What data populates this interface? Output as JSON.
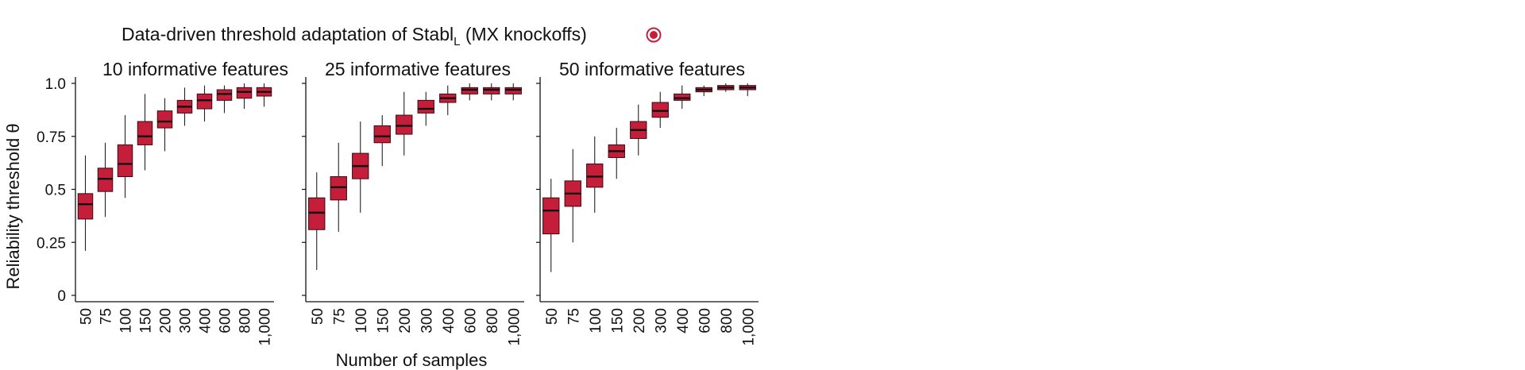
{
  "figure": {
    "title_main": "Data-driven threshold adaptation of Stabl",
    "title_sub": "L",
    "title_suffix": " (MX knockoffs)",
    "marker_icon": "target-circle-icon",
    "marker_color": "#c41e3a"
  },
  "chart_data": [
    {
      "type": "box",
      "title": "10 informative features",
      "xlabel": "",
      "ylabel": "Reliability threshold θ",
      "ylim": [
        0,
        1
      ],
      "yticks": [
        0,
        0.25,
        0.5,
        0.75,
        1.0
      ],
      "ytick_labels": [
        "0",
        "0.25",
        "0.5",
        "0.75",
        "1.0"
      ],
      "categories": [
        "50",
        "75",
        "100",
        "150",
        "200",
        "300",
        "400",
        "600",
        "800",
        "1,000"
      ],
      "box_color": "#c41e3a",
      "boxes": [
        {
          "whislo": 0.21,
          "q1": 0.36,
          "med": 0.43,
          "q3": 0.48,
          "whishi": 0.66
        },
        {
          "whislo": 0.37,
          "q1": 0.49,
          "med": 0.55,
          "q3": 0.6,
          "whishi": 0.72
        },
        {
          "whislo": 0.46,
          "q1": 0.56,
          "med": 0.62,
          "q3": 0.71,
          "whishi": 0.85
        },
        {
          "whislo": 0.59,
          "q1": 0.71,
          "med": 0.75,
          "q3": 0.82,
          "whishi": 0.95
        },
        {
          "whislo": 0.68,
          "q1": 0.79,
          "med": 0.82,
          "q3": 0.87,
          "whishi": 0.93
        },
        {
          "whislo": 0.8,
          "q1": 0.86,
          "med": 0.89,
          "q3": 0.92,
          "whishi": 0.98
        },
        {
          "whislo": 0.82,
          "q1": 0.88,
          "med": 0.92,
          "q3": 0.95,
          "whishi": 0.99
        },
        {
          "whislo": 0.86,
          "q1": 0.92,
          "med": 0.95,
          "q3": 0.97,
          "whishi": 0.99
        },
        {
          "whislo": 0.88,
          "q1": 0.93,
          "med": 0.96,
          "q3": 0.98,
          "whishi": 1.0
        },
        {
          "whislo": 0.89,
          "q1": 0.94,
          "med": 0.96,
          "q3": 0.98,
          "whishi": 1.0
        }
      ]
    },
    {
      "type": "box",
      "title": "25 informative features",
      "xlabel": "Number of samples",
      "ylabel": "",
      "ylim": [
        0,
        1
      ],
      "categories": [
        "50",
        "75",
        "100",
        "150",
        "200",
        "300",
        "400",
        "600",
        "800",
        "1,000"
      ],
      "box_color": "#c41e3a",
      "boxes": [
        {
          "whislo": 0.12,
          "q1": 0.31,
          "med": 0.39,
          "q3": 0.46,
          "whishi": 0.58
        },
        {
          "whislo": 0.3,
          "q1": 0.45,
          "med": 0.51,
          "q3": 0.56,
          "whishi": 0.72
        },
        {
          "whislo": 0.39,
          "q1": 0.55,
          "med": 0.61,
          "q3": 0.67,
          "whishi": 0.82
        },
        {
          "whislo": 0.61,
          "q1": 0.72,
          "med": 0.75,
          "q3": 0.8,
          "whishi": 0.85
        },
        {
          "whislo": 0.66,
          "q1": 0.76,
          "med": 0.8,
          "q3": 0.85,
          "whishi": 0.96
        },
        {
          "whislo": 0.8,
          "q1": 0.86,
          "med": 0.88,
          "q3": 0.92,
          "whishi": 0.96
        },
        {
          "whislo": 0.85,
          "q1": 0.91,
          "med": 0.93,
          "q3": 0.95,
          "whishi": 0.99
        },
        {
          "whislo": 0.92,
          "q1": 0.95,
          "med": 0.97,
          "q3": 0.98,
          "whishi": 1.0
        },
        {
          "whislo": 0.92,
          "q1": 0.95,
          "med": 0.97,
          "q3": 0.98,
          "whishi": 1.0
        },
        {
          "whislo": 0.92,
          "q1": 0.95,
          "med": 0.97,
          "q3": 0.98,
          "whishi": 1.0
        }
      ]
    },
    {
      "type": "box",
      "title": "50 informative features",
      "xlabel": "",
      "ylabel": "",
      "ylim": [
        0,
        1
      ],
      "categories": [
        "50",
        "75",
        "100",
        "150",
        "200",
        "300",
        "400",
        "600",
        "800",
        "1,000"
      ],
      "box_color": "#c41e3a",
      "boxes": [
        {
          "whislo": 0.11,
          "q1": 0.29,
          "med": 0.4,
          "q3": 0.46,
          "whishi": 0.55
        },
        {
          "whislo": 0.25,
          "q1": 0.42,
          "med": 0.48,
          "q3": 0.54,
          "whishi": 0.69
        },
        {
          "whislo": 0.39,
          "q1": 0.51,
          "med": 0.56,
          "q3": 0.62,
          "whishi": 0.75
        },
        {
          "whislo": 0.55,
          "q1": 0.65,
          "med": 0.68,
          "q3": 0.71,
          "whishi": 0.79
        },
        {
          "whislo": 0.66,
          "q1": 0.74,
          "med": 0.78,
          "q3": 0.82,
          "whishi": 0.9
        },
        {
          "whislo": 0.79,
          "q1": 0.84,
          "med": 0.87,
          "q3": 0.91,
          "whishi": 0.96
        },
        {
          "whislo": 0.88,
          "q1": 0.92,
          "med": 0.93,
          "q3": 0.95,
          "whishi": 0.99
        },
        {
          "whislo": 0.94,
          "q1": 0.96,
          "med": 0.97,
          "q3": 0.98,
          "whishi": 0.99
        },
        {
          "whislo": 0.96,
          "q1": 0.97,
          "med": 0.98,
          "q3": 0.99,
          "whishi": 1.0
        },
        {
          "whislo": 0.94,
          "q1": 0.97,
          "med": 0.98,
          "q3": 0.99,
          "whishi": 1.0
        }
      ]
    }
  ]
}
